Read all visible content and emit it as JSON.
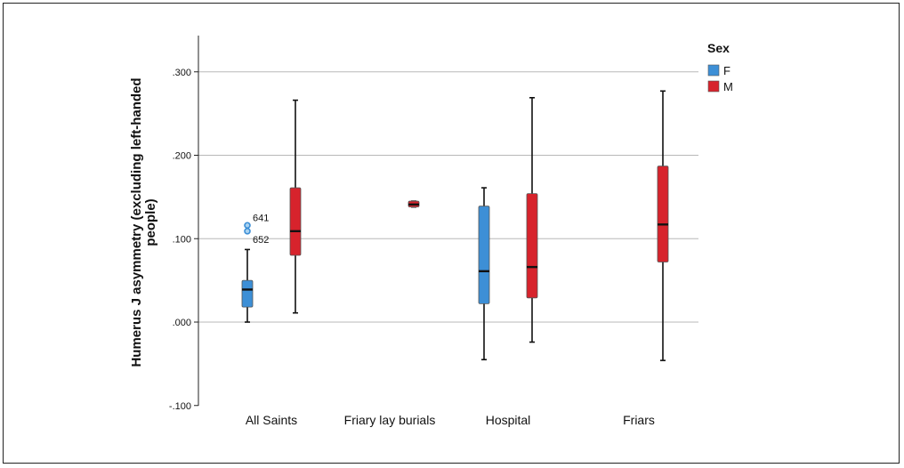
{
  "chart_data": {
    "type": "boxplot",
    "ylabel_lines": [
      "Humerus J asymmetry (excluding left-handed",
      "people)"
    ],
    "ylim": [
      -0.1,
      0.34
    ],
    "yticks": [
      {
        "value": 0.3,
        "label": ".300"
      },
      {
        "value": 0.2,
        "label": ".200"
      },
      {
        "value": 0.1,
        "label": ".100"
      },
      {
        "value": 0.0,
        "label": ".000"
      },
      {
        "value": -0.1,
        "label": "-.100"
      }
    ],
    "gridlines": [
      0.3,
      0.2,
      0.1,
      0.0
    ],
    "categories": [
      "All Saints",
      "Friary lay burials",
      "Hospital",
      "Friars"
    ],
    "legend": {
      "title": "Sex",
      "placement": "top-right",
      "items": [
        {
          "label": "F",
          "color": "#3d8fd6"
        },
        {
          "label": "M",
          "color": "#d7232c"
        }
      ]
    },
    "series": [
      {
        "name": "F",
        "color": "#3d8fd6",
        "boxes": [
          {
            "category": "All Saints",
            "min": 0.0,
            "q1": 0.018,
            "median": 0.039,
            "q3": 0.05,
            "max": 0.087,
            "outliers": [
              {
                "value": 0.116,
                "label": "641"
              },
              {
                "value": 0.109,
                "label": "652"
              }
            ]
          },
          {
            "category": "Hospital",
            "min": -0.045,
            "q1": 0.022,
            "median": 0.061,
            "q3": 0.139,
            "max": 0.161,
            "outliers": []
          }
        ]
      },
      {
        "name": "M",
        "color": "#d7232c",
        "boxes": [
          {
            "category": "All Saints",
            "min": 0.011,
            "q1": 0.08,
            "median": 0.109,
            "q3": 0.161,
            "max": 0.266,
            "outliers": []
          },
          {
            "category": "Friary lay burials",
            "min": 0.138,
            "q1": 0.138,
            "median": 0.141,
            "q3": 0.145,
            "max": 0.145,
            "outliers": []
          },
          {
            "category": "Hospital",
            "min": -0.024,
            "q1": 0.029,
            "median": 0.066,
            "q3": 0.154,
            "max": 0.269,
            "outliers": []
          },
          {
            "category": "Friars",
            "min": -0.046,
            "q1": 0.072,
            "median": 0.117,
            "q3": 0.187,
            "max": 0.277,
            "outliers": []
          }
        ]
      }
    ]
  }
}
